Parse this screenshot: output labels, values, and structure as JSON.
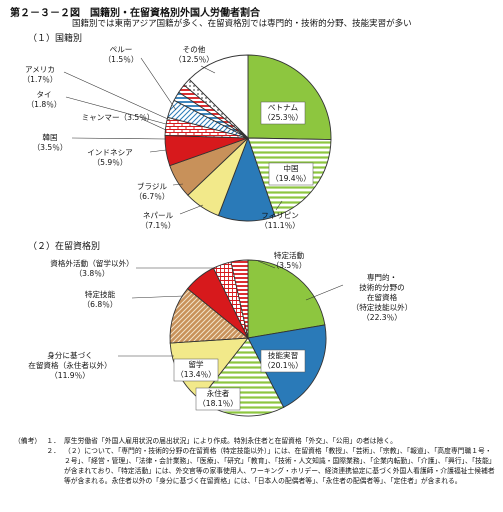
{
  "title": "第２－３－２図　国籍別・在留資格別外国人労働者割合",
  "subtitle": "国籍別では東南アジア国籍が多く、在留資格別では専門的・技術的分野、技能実習が多い",
  "colors": {
    "green": "#8dc63f",
    "red": "#d7191c",
    "tan": "#c8915a",
    "yellow": "#f2e98a",
    "blue": "#2a7ab8",
    "white": "#ffffff",
    "stroke": "#333333"
  },
  "chart_data": [
    {
      "type": "pie",
      "title": "（１）国籍別",
      "start": "12 o'clock, clockwise",
      "slices": [
        {
          "name": "ベトナム",
          "value": "（25.3％）",
          "pct": 25.3,
          "color": "#8dc63f",
          "pattern": "solid"
        },
        {
          "name": "中国",
          "value": "（19.4％）",
          "pct": 19.4,
          "color": "#8dc63f",
          "pattern": "hatch"
        },
        {
          "name": "フィリピン",
          "value": "（11.1％）",
          "pct": 11.1,
          "color": "#2a7ab8",
          "pattern": "solid"
        },
        {
          "name": "ネパール",
          "value": "（7.1％）",
          "pct": 7.1,
          "color": "#f2e98a",
          "pattern": "solid"
        },
        {
          "name": "ブラジル",
          "value": "（6.7％）",
          "pct": 6.7,
          "color": "#c8915a",
          "pattern": "solid"
        },
        {
          "name": "インドネシア",
          "value": "（5.9％）",
          "pct": 5.9,
          "color": "#d7191c",
          "pattern": "solid"
        },
        {
          "name": "韓国",
          "value": "（3.5％）",
          "pct": 3.5,
          "color": "#ffffff",
          "pattern": "brick"
        },
        {
          "name": "ミャンマー",
          "value": "（3.5％）",
          "pct": 3.5,
          "color": "#ffffff",
          "pattern": "diag"
        },
        {
          "name": "タイ",
          "value": "（1.8％）",
          "pct": 1.8,
          "color": "#2a7ab8",
          "pattern": "hatch"
        },
        {
          "name": "アメリカ",
          "value": "（1.7％）",
          "pct": 1.7,
          "color": "#d7191c",
          "pattern": "hatch"
        },
        {
          "name": "ペルー",
          "value": "（1.5％）",
          "pct": 1.5,
          "color": "#ffffff",
          "pattern": "dots"
        },
        {
          "name": "その他",
          "value": "（12.5％）",
          "pct": 12.5,
          "color": "#ffffff",
          "pattern": "solid"
        }
      ]
    },
    {
      "type": "pie",
      "title": "（２）在留資格別",
      "start": "12 o'clock, clockwise",
      "slices": [
        {
          "name": "専門的・\n技術的分野の\n在留資格\n（特定技能以外）",
          "value": "（22.3％）",
          "pct": 22.3,
          "color": "#8dc63f",
          "pattern": "solid"
        },
        {
          "name": "技能実習",
          "value": "（20.1％）",
          "pct": 20.1,
          "color": "#2a7ab8",
          "pattern": "solid"
        },
        {
          "name": "永住者",
          "value": "（18.1％）",
          "pct": 18.1,
          "color": "#8dc63f",
          "pattern": "hatch"
        },
        {
          "name": "留学",
          "value": "（13.4％）",
          "pct": 13.4,
          "color": "#f2e98a",
          "pattern": "solid"
        },
        {
          "name": "身分に基づく\n在留資格（永住者以外）",
          "value": "（11.9％）",
          "pct": 11.9,
          "color": "#c8915a",
          "pattern": "diag"
        },
        {
          "name": "特定技能",
          "value": "（6.8％）",
          "pct": 6.8,
          "color": "#d7191c",
          "pattern": "solid"
        },
        {
          "name": "資格外活動（留学以外）",
          "value": "（3.8％）",
          "pct": 3.8,
          "color": "#ffffff",
          "pattern": "grid"
        },
        {
          "name": "特定活動",
          "value": "（3.5％）",
          "pct": 3.5,
          "color": "#d7191c",
          "pattern": "hatch"
        }
      ]
    }
  ],
  "notes": {
    "head": "（備考）",
    "items": [
      {
        "num": "１．",
        "text": "厚生労働省「外国人雇用状況の届出状況」により作成。特別永住者と在留資格「外交」、「公用」の者は除く。"
      },
      {
        "num": "２．",
        "text": "（２）について、「専門的・技術的分野の在留資格（特定技能以外）」には、在留資格「教授」、「芸術」、「宗教」、「報道」、「高度専門職１号・２号」、「経営・管理」、「法律・会計業務」、「医療」、「研究」「教育」、「技術・人文知識・国際業務」、「企業内転勤」、「介護」、「興行」、「技能」が含まれており、「特定活動」には、外交官等の家事使用人、ワーキング・ホリデー、経済連携協定に基づく外国人看護師・介護福祉士候補者等が含まれる。永住者以外の「身分に基づく在留資格」には、「日本人の配偶者等」、「永住者の配偶者等」、「定住者」が含まれる。"
      }
    ]
  }
}
